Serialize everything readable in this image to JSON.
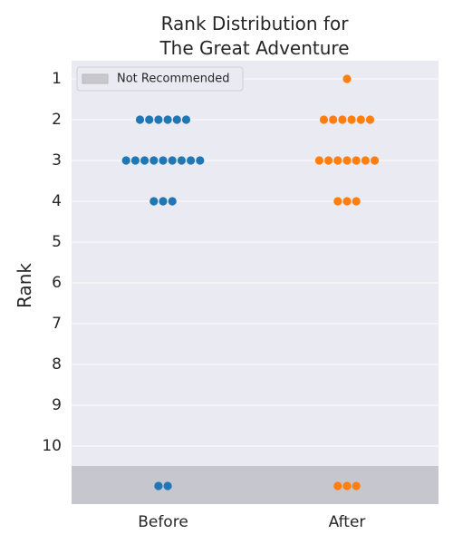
{
  "chart_data": {
    "type": "swarm",
    "title_lines": [
      "Rank Distribution for",
      "The Great Adventure"
    ],
    "ylabel": "Rank",
    "categories": [
      "Before",
      "After"
    ],
    "rank_ticks": [
      "1",
      "2",
      "3",
      "4",
      "5",
      "6",
      "7",
      "8",
      "9",
      "10"
    ],
    "ylim": [
      0.5,
      11.5
    ],
    "y_inverted": true,
    "grid": true,
    "not_recommended_band": {
      "label": "Not Recommended",
      "from_rank": 10.5,
      "to_rank": 11.5,
      "color": "#c0c0c8"
    },
    "legend": {
      "placement": "top-left",
      "entries": [
        "Not Recommended"
      ]
    },
    "series": [
      {
        "category": "Before",
        "color": "#1f77b4",
        "counts": [
          {
            "rank": 2,
            "count": 6
          },
          {
            "rank": 3,
            "count": 9
          },
          {
            "rank": 4,
            "count": 3
          },
          {
            "rank": "not_recommended",
            "count": 2
          }
        ]
      },
      {
        "category": "After",
        "color": "#ff7f0e",
        "counts": [
          {
            "rank": 1,
            "count": 1
          },
          {
            "rank": 2,
            "count": 6
          },
          {
            "rank": 3,
            "count": 7
          },
          {
            "rank": 4,
            "count": 3
          },
          {
            "rank": "not_recommended",
            "count": 3
          }
        ]
      }
    ],
    "colors": {
      "plot_background": "#eaeaf2",
      "grid": "#ffffff"
    }
  }
}
